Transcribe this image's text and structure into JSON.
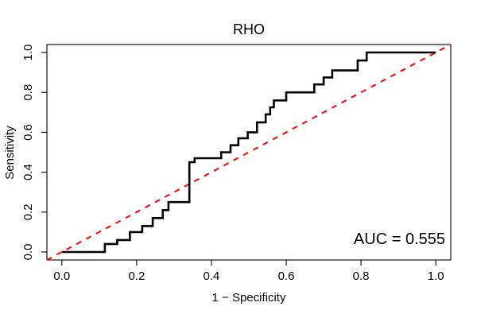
{
  "figure": {
    "title": "RHO",
    "xlabel": "1 − Specificity",
    "ylabel": "Sensitivity",
    "annotation": "AUC = 0.555"
  },
  "colors": {
    "roc_curve": "#000000",
    "reference_line": "#FF0000",
    "axis": "#000000",
    "background": "#FFFFFF"
  },
  "chart_data": {
    "type": "line",
    "subtype": "roc_step_curve",
    "title": "RHO",
    "xlabel": "1 − Specificity",
    "ylabel": "Sensitivity",
    "xlim": [
      0.0,
      1.0
    ],
    "ylim": [
      0.0,
      1.0
    ],
    "axis_padding_fraction": 0.04,
    "grid": false,
    "legend": "none",
    "x_ticks": [
      0.0,
      0.2,
      0.4,
      0.6,
      0.8,
      1.0
    ],
    "y_ticks": [
      0.0,
      0.2,
      0.4,
      0.6,
      0.8,
      1.0
    ],
    "x_tick_labels": [
      "0.0",
      "0.2",
      "0.4",
      "0.6",
      "0.8",
      "1.0"
    ],
    "y_tick_labels": [
      "0.0",
      "0.2",
      "0.4",
      "0.6",
      "0.8",
      "1.0"
    ],
    "auc": 0.555,
    "annotation": {
      "text": "AUC = 0.555",
      "anchor_x": 1.0,
      "anchor_y": 0.06,
      "align": "right"
    },
    "series": [
      {
        "name": "ROC step curve",
        "style": "step",
        "color": "#000000",
        "line_width": 2.6,
        "start": [
          0.0,
          0.0
        ],
        "end": [
          1.0,
          1.0
        ],
        "steps": [
          {
            "x": 0.115,
            "y": 0.04
          },
          {
            "x": 0.148,
            "y": 0.06
          },
          {
            "x": 0.182,
            "y": 0.1
          },
          {
            "x": 0.215,
            "y": 0.13
          },
          {
            "x": 0.243,
            "y": 0.17
          },
          {
            "x": 0.27,
            "y": 0.21
          },
          {
            "x": 0.285,
            "y": 0.25
          },
          {
            "x": 0.341,
            "y": 0.45
          },
          {
            "x": 0.355,
            "y": 0.47
          },
          {
            "x": 0.426,
            "y": 0.5
          },
          {
            "x": 0.451,
            "y": 0.535
          },
          {
            "x": 0.472,
            "y": 0.57
          },
          {
            "x": 0.497,
            "y": 0.6
          },
          {
            "x": 0.522,
            "y": 0.65
          },
          {
            "x": 0.545,
            "y": 0.69
          },
          {
            "x": 0.557,
            "y": 0.725
          },
          {
            "x": 0.567,
            "y": 0.76
          },
          {
            "x": 0.6,
            "y": 0.8
          },
          {
            "x": 0.675,
            "y": 0.84
          },
          {
            "x": 0.7,
            "y": 0.875
          },
          {
            "x": 0.723,
            "y": 0.91
          },
          {
            "x": 0.791,
            "y": 0.96
          },
          {
            "x": 0.815,
            "y": 1.0
          }
        ]
      },
      {
        "name": "Chance diagonal",
        "style": "dashed-line",
        "color": "#FF0000",
        "line_width": 2,
        "dash": [
          7,
          7
        ],
        "from": [
          0.0,
          0.0
        ],
        "to": [
          1.0,
          1.0
        ],
        "clip": "full-plot-box"
      }
    ]
  }
}
